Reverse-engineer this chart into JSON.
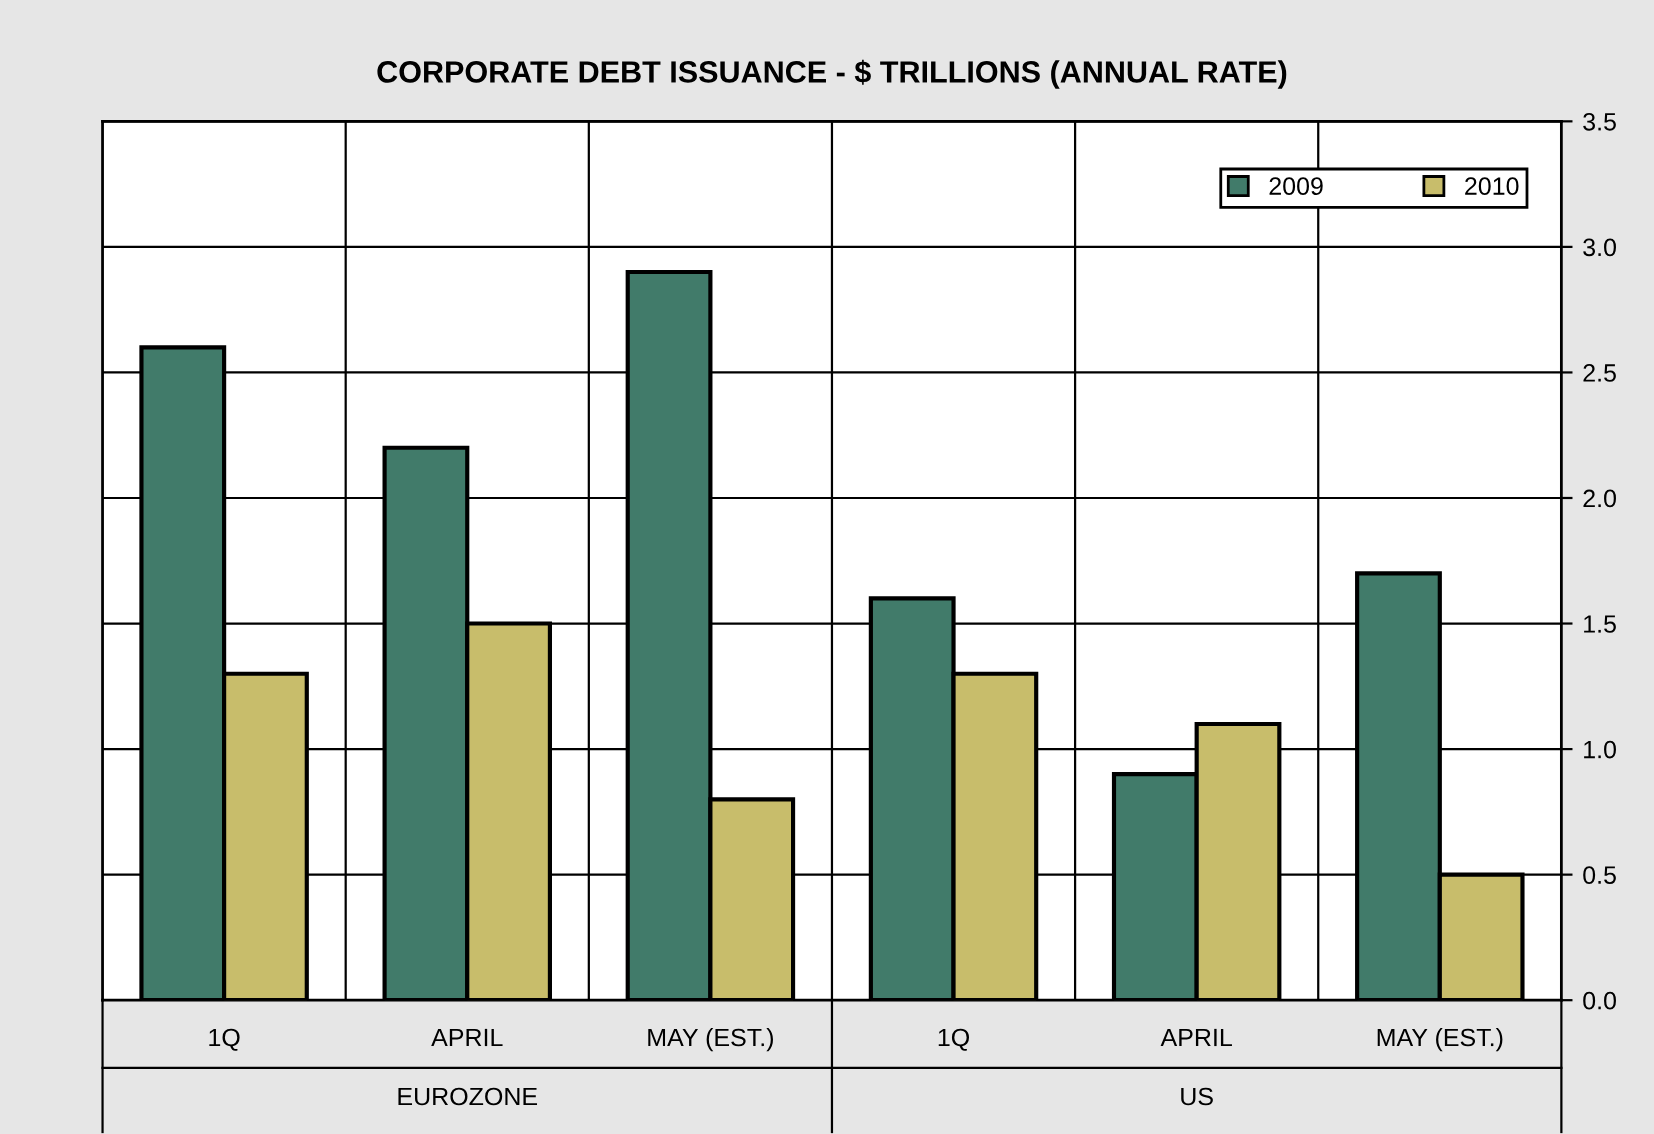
{
  "chart_data": {
    "type": "bar",
    "title": "CORPORATE DEBT ISSUANCE - $ TRILLIONS (ANNUAL RATE)",
    "categories": [
      "1Q",
      "APRIL",
      "MAY (EST.)",
      "1Q",
      "APRIL",
      "MAY (EST.)"
    ],
    "annotations": [
      "EUROZONE",
      "US"
    ],
    "series": [
      {
        "name": "2009",
        "color": "#417b6a",
        "values": [
          2.6,
          2.2,
          2.9,
          1.6,
          0.9,
          1.7
        ]
      },
      {
        "name": "2010",
        "color": "#c8bd6b",
        "values": [
          1.3,
          1.5,
          0.8,
          1.3,
          1.1,
          0.5
        ]
      }
    ],
    "ylim": [
      0,
      3.5
    ],
    "yticks": [
      {
        "value": 0,
        "label": "0.0"
      },
      {
        "value": 0.5,
        "label": "0.5"
      },
      {
        "value": 1,
        "label": "1.0"
      },
      {
        "value": 1.5,
        "label": "1.5"
      },
      {
        "value": 2,
        "label": "2.0"
      },
      {
        "value": 2.5,
        "label": "2.5"
      },
      {
        "value": 3,
        "label": "3.0"
      },
      {
        "value": 3.5,
        "label": "3.5"
      }
    ],
    "grid": true,
    "legend": "top right"
  }
}
